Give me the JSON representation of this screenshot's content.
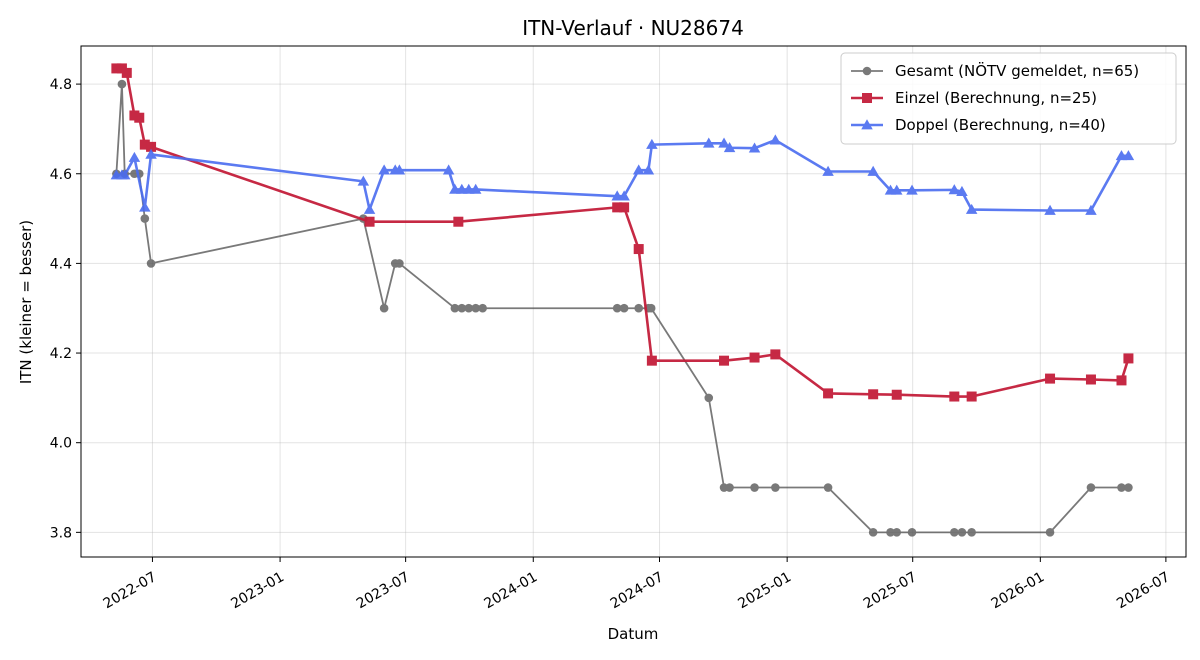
{
  "chart_data": {
    "type": "line",
    "title": "ITN-Verlauf · NU28674",
    "xlabel": "Datum",
    "ylabel": "ITN  (kleiner = besser)",
    "xlim": [
      "2022-03-20",
      "2026-07-30"
    ],
    "ylim": [
      3.745,
      4.885
    ],
    "x_ticks": [
      "2022-07-01",
      "2023-01-01",
      "2023-07-01",
      "2024-01-01",
      "2024-07-01",
      "2025-01-01",
      "2025-07-01",
      "2026-01-01",
      "2026-07-01"
    ],
    "x_tick_labels": [
      "2022-07",
      "2023-01",
      "2023-07",
      "2024-01",
      "2024-07",
      "2025-01",
      "2025-07",
      "2026-01",
      "2026-07"
    ],
    "y_ticks": [
      3.8,
      4.0,
      4.2,
      4.4,
      4.6,
      4.8
    ],
    "y_tick_labels": [
      "3.8",
      "4.0",
      "4.2",
      "4.4",
      "4.6",
      "4.8"
    ],
    "grid": true,
    "legend_position": "top-right",
    "series": [
      {
        "name": "Gesamt (NÖTV gemeldet, n=65)",
        "color": "#4d4d4d",
        "marker": "circle",
        "x": [
          "2022-05-10",
          "2022-05-18",
          "2022-05-22",
          "2022-06-05",
          "2022-06-12",
          "2022-06-20",
          "2022-06-29",
          "2023-05-01",
          "2023-05-31",
          "2023-06-16",
          "2023-06-22",
          "2023-09-10",
          "2023-09-20",
          "2023-09-30",
          "2023-10-10",
          "2023-10-20",
          "2024-05-01",
          "2024-05-11",
          "2024-06-01",
          "2024-06-15",
          "2024-06-19",
          "2024-09-10",
          "2024-10-02",
          "2024-10-10",
          "2024-11-15",
          "2024-12-15",
          "2025-03-01",
          "2025-05-05",
          "2025-05-30",
          "2025-06-08",
          "2025-06-30",
          "2025-08-30",
          "2025-09-10",
          "2025-09-24",
          "2026-01-15",
          "2026-03-15",
          "2026-04-28",
          "2026-05-08"
        ],
        "y": [
          4.6,
          4.8,
          4.6,
          4.6,
          4.6,
          4.5,
          4.4,
          4.5,
          4.3,
          4.4,
          4.4,
          4.3,
          4.3,
          4.3,
          4.3,
          4.3,
          4.3,
          4.3,
          4.3,
          4.3,
          4.3,
          4.1,
          3.9,
          3.9,
          3.9,
          3.9,
          3.9,
          3.8,
          3.8,
          3.8,
          3.8,
          3.8,
          3.8,
          3.8,
          3.8,
          3.9,
          3.9,
          3.9
        ]
      },
      {
        "name": "Einzel (Berechnung, n=25)",
        "color": "#c41e3a",
        "marker": "square",
        "x": [
          "2022-05-10",
          "2022-05-18",
          "2022-05-25",
          "2022-06-05",
          "2022-06-12",
          "2022-06-20",
          "2022-06-29",
          "2023-05-10",
          "2023-09-15",
          "2024-05-01",
          "2024-05-11",
          "2024-06-01",
          "2024-06-20",
          "2024-10-02",
          "2024-11-15",
          "2024-12-15",
          "2025-03-01",
          "2025-05-05",
          "2025-06-08",
          "2025-08-30",
          "2025-09-24",
          "2026-01-15",
          "2026-03-15",
          "2026-04-28",
          "2026-05-08"
        ],
        "y": [
          4.835,
          4.835,
          4.825,
          4.73,
          4.725,
          4.665,
          4.66,
          4.493,
          4.493,
          4.525,
          4.525,
          4.432,
          4.183,
          4.183,
          4.19,
          4.197,
          4.11,
          4.108,
          4.107,
          4.103,
          4.103,
          4.143,
          4.141,
          4.139,
          4.188
        ]
      },
      {
        "name": "Doppel (Berechnung, n=40)",
        "color": "#4a6cf0",
        "marker": "triangle",
        "x": [
          "2022-05-10",
          "2022-05-18",
          "2022-05-22",
          "2022-06-05",
          "2022-06-20",
          "2022-06-29",
          "2023-05-01",
          "2023-05-10",
          "2023-05-31",
          "2023-06-16",
          "2023-06-22",
          "2023-09-01",
          "2023-09-10",
          "2023-09-20",
          "2023-09-30",
          "2023-10-10",
          "2024-05-01",
          "2024-05-11",
          "2024-06-01",
          "2024-06-15",
          "2024-06-20",
          "2024-09-10",
          "2024-10-02",
          "2024-10-10",
          "2024-11-15",
          "2024-12-15",
          "2025-03-01",
          "2025-05-05",
          "2025-05-30",
          "2025-06-08",
          "2025-06-30",
          "2025-08-30",
          "2025-09-10",
          "2025-09-24",
          "2026-01-15",
          "2026-03-15",
          "2026-04-28",
          "2026-05-08"
        ],
        "y": [
          4.597,
          4.597,
          4.597,
          4.636,
          4.525,
          4.643,
          4.583,
          4.52,
          4.608,
          4.608,
          4.608,
          4.608,
          4.565,
          4.565,
          4.565,
          4.565,
          4.55,
          4.55,
          4.608,
          4.608,
          4.665,
          4.668,
          4.668,
          4.658,
          4.657,
          4.675,
          4.605,
          4.605,
          4.563,
          4.563,
          4.563,
          4.564,
          4.56,
          4.52,
          4.518,
          4.518,
          4.64,
          4.64
        ]
      }
    ]
  }
}
